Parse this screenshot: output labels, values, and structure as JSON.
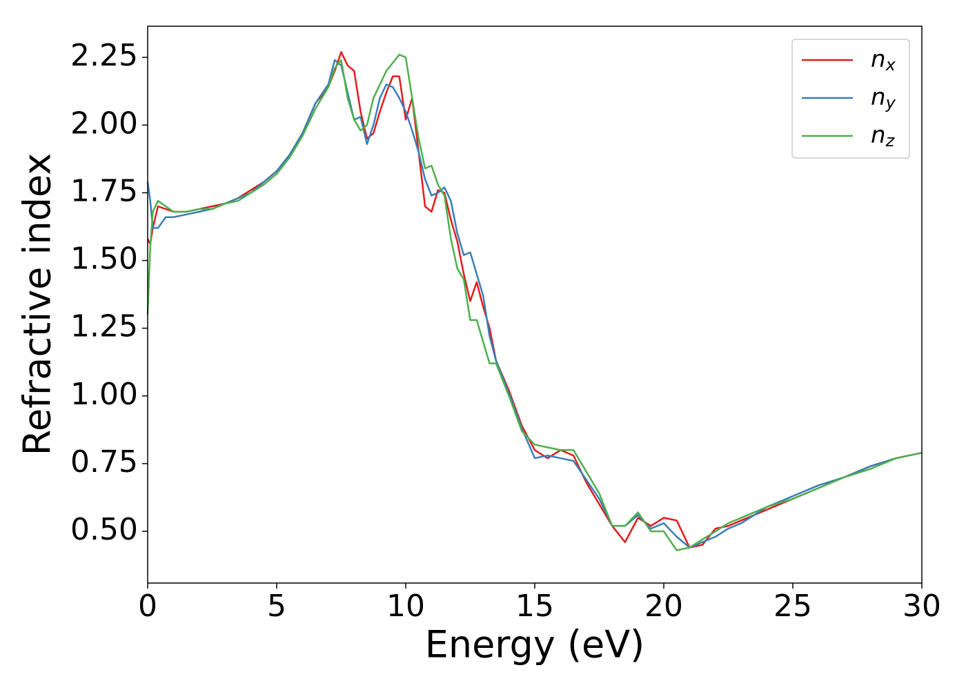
{
  "chart_data": {
    "type": "line",
    "x_label": "Energy (eV)",
    "y_label": "Refractive index",
    "x": [
      0,
      0.1,
      0.2,
      0.4,
      0.7,
      1,
      1.5,
      2,
      2.5,
      3,
      3.5,
      4,
      4.5,
      5,
      5.5,
      6,
      6.5,
      7,
      7.25,
      7.5,
      7.75,
      8,
      8.25,
      8.5,
      8.75,
      9,
      9.25,
      9.5,
      9.75,
      10,
      10.25,
      10.5,
      10.75,
      11,
      11.25,
      11.5,
      11.75,
      12,
      12.25,
      12.5,
      12.75,
      13,
      13.25,
      13.5,
      14,
      14.5,
      15,
      15.5,
      16,
      16.5,
      17,
      17.5,
      18,
      18.5,
      19,
      19.5,
      20,
      20.5,
      21,
      21.5,
      22,
      22.5,
      23,
      24,
      25,
      26,
      27,
      28,
      29,
      30
    ],
    "series": [
      {
        "name": "nx",
        "color": "#e41a1c",
        "values": [
          1.58,
          1.56,
          1.62,
          1.7,
          1.69,
          1.68,
          1.68,
          1.69,
          1.7,
          1.71,
          1.73,
          1.76,
          1.79,
          1.83,
          1.89,
          1.97,
          2.08,
          2.14,
          2.2,
          2.27,
          2.22,
          2.2,
          2.05,
          1.95,
          1.97,
          2.05,
          2.12,
          2.18,
          2.18,
          2.02,
          2.1,
          1.9,
          1.7,
          1.68,
          1.76,
          1.75,
          1.65,
          1.57,
          1.45,
          1.35,
          1.42,
          1.33,
          1.25,
          1.13,
          1.02,
          0.89,
          0.8,
          0.77,
          0.8,
          0.78,
          0.68,
          0.6,
          0.52,
          0.46,
          0.55,
          0.52,
          0.55,
          0.54,
          0.44,
          0.45,
          0.51,
          0.52,
          0.54,
          0.58,
          0.62,
          0.66,
          0.7,
          0.74,
          0.77,
          0.79
        ]
      },
      {
        "name": "ny",
        "color": "#377eb8",
        "values": [
          1.79,
          1.72,
          1.62,
          1.62,
          1.66,
          1.66,
          1.67,
          1.68,
          1.69,
          1.71,
          1.73,
          1.75,
          1.79,
          1.83,
          1.89,
          1.97,
          2.08,
          2.15,
          2.24,
          2.22,
          2.12,
          2.02,
          2.03,
          1.93,
          2.0,
          2.1,
          2.15,
          2.14,
          2.1,
          2.05,
          1.98,
          1.9,
          1.8,
          1.74,
          1.75,
          1.77,
          1.72,
          1.6,
          1.52,
          1.53,
          1.45,
          1.37,
          1.22,
          1.13,
          1.01,
          0.88,
          0.77,
          0.78,
          0.77,
          0.76,
          0.69,
          0.62,
          0.52,
          0.52,
          0.56,
          0.51,
          0.53,
          0.48,
          0.44,
          0.46,
          0.48,
          0.51,
          0.53,
          0.59,
          0.63,
          0.67,
          0.7,
          0.74,
          0.77,
          0.79
        ]
      },
      {
        "name": "nz",
        "color": "#4daf4a",
        "values": [
          1.3,
          1.55,
          1.68,
          1.72,
          1.7,
          1.68,
          1.68,
          1.69,
          1.69,
          1.71,
          1.72,
          1.75,
          1.78,
          1.82,
          1.88,
          1.96,
          2.06,
          2.14,
          2.21,
          2.24,
          2.1,
          2.02,
          1.98,
          2.0,
          2.1,
          2.15,
          2.2,
          2.23,
          2.26,
          2.25,
          2.1,
          1.95,
          1.84,
          1.85,
          1.78,
          1.74,
          1.58,
          1.47,
          1.43,
          1.28,
          1.28,
          1.2,
          1.12,
          1.12,
          1.0,
          0.87,
          0.82,
          0.81,
          0.8,
          0.8,
          0.72,
          0.64,
          0.52,
          0.52,
          0.57,
          0.5,
          0.5,
          0.43,
          0.44,
          0.47,
          0.5,
          0.53,
          0.55,
          0.59,
          0.62,
          0.66,
          0.7,
          0.73,
          0.77,
          0.79
        ]
      }
    ],
    "xlim": [
      0,
      30
    ],
    "xticks": [
      0,
      5,
      10,
      15,
      20,
      25,
      30
    ],
    "ylim": [
      0.309,
      2.365
    ],
    "yticks": [
      {
        "value": 0.5,
        "label": "0.50"
      },
      {
        "value": 0.75,
        "label": "0.75"
      },
      {
        "value": 1.0,
        "label": "1.00"
      },
      {
        "value": 1.25,
        "label": "1.25"
      },
      {
        "value": 1.5,
        "label": "1.50"
      },
      {
        "value": 1.75,
        "label": "1.75"
      },
      {
        "value": 2.0,
        "label": "2.00"
      },
      {
        "value": 2.25,
        "label": "2.25"
      }
    ],
    "grid": false,
    "legend": "upper right"
  }
}
